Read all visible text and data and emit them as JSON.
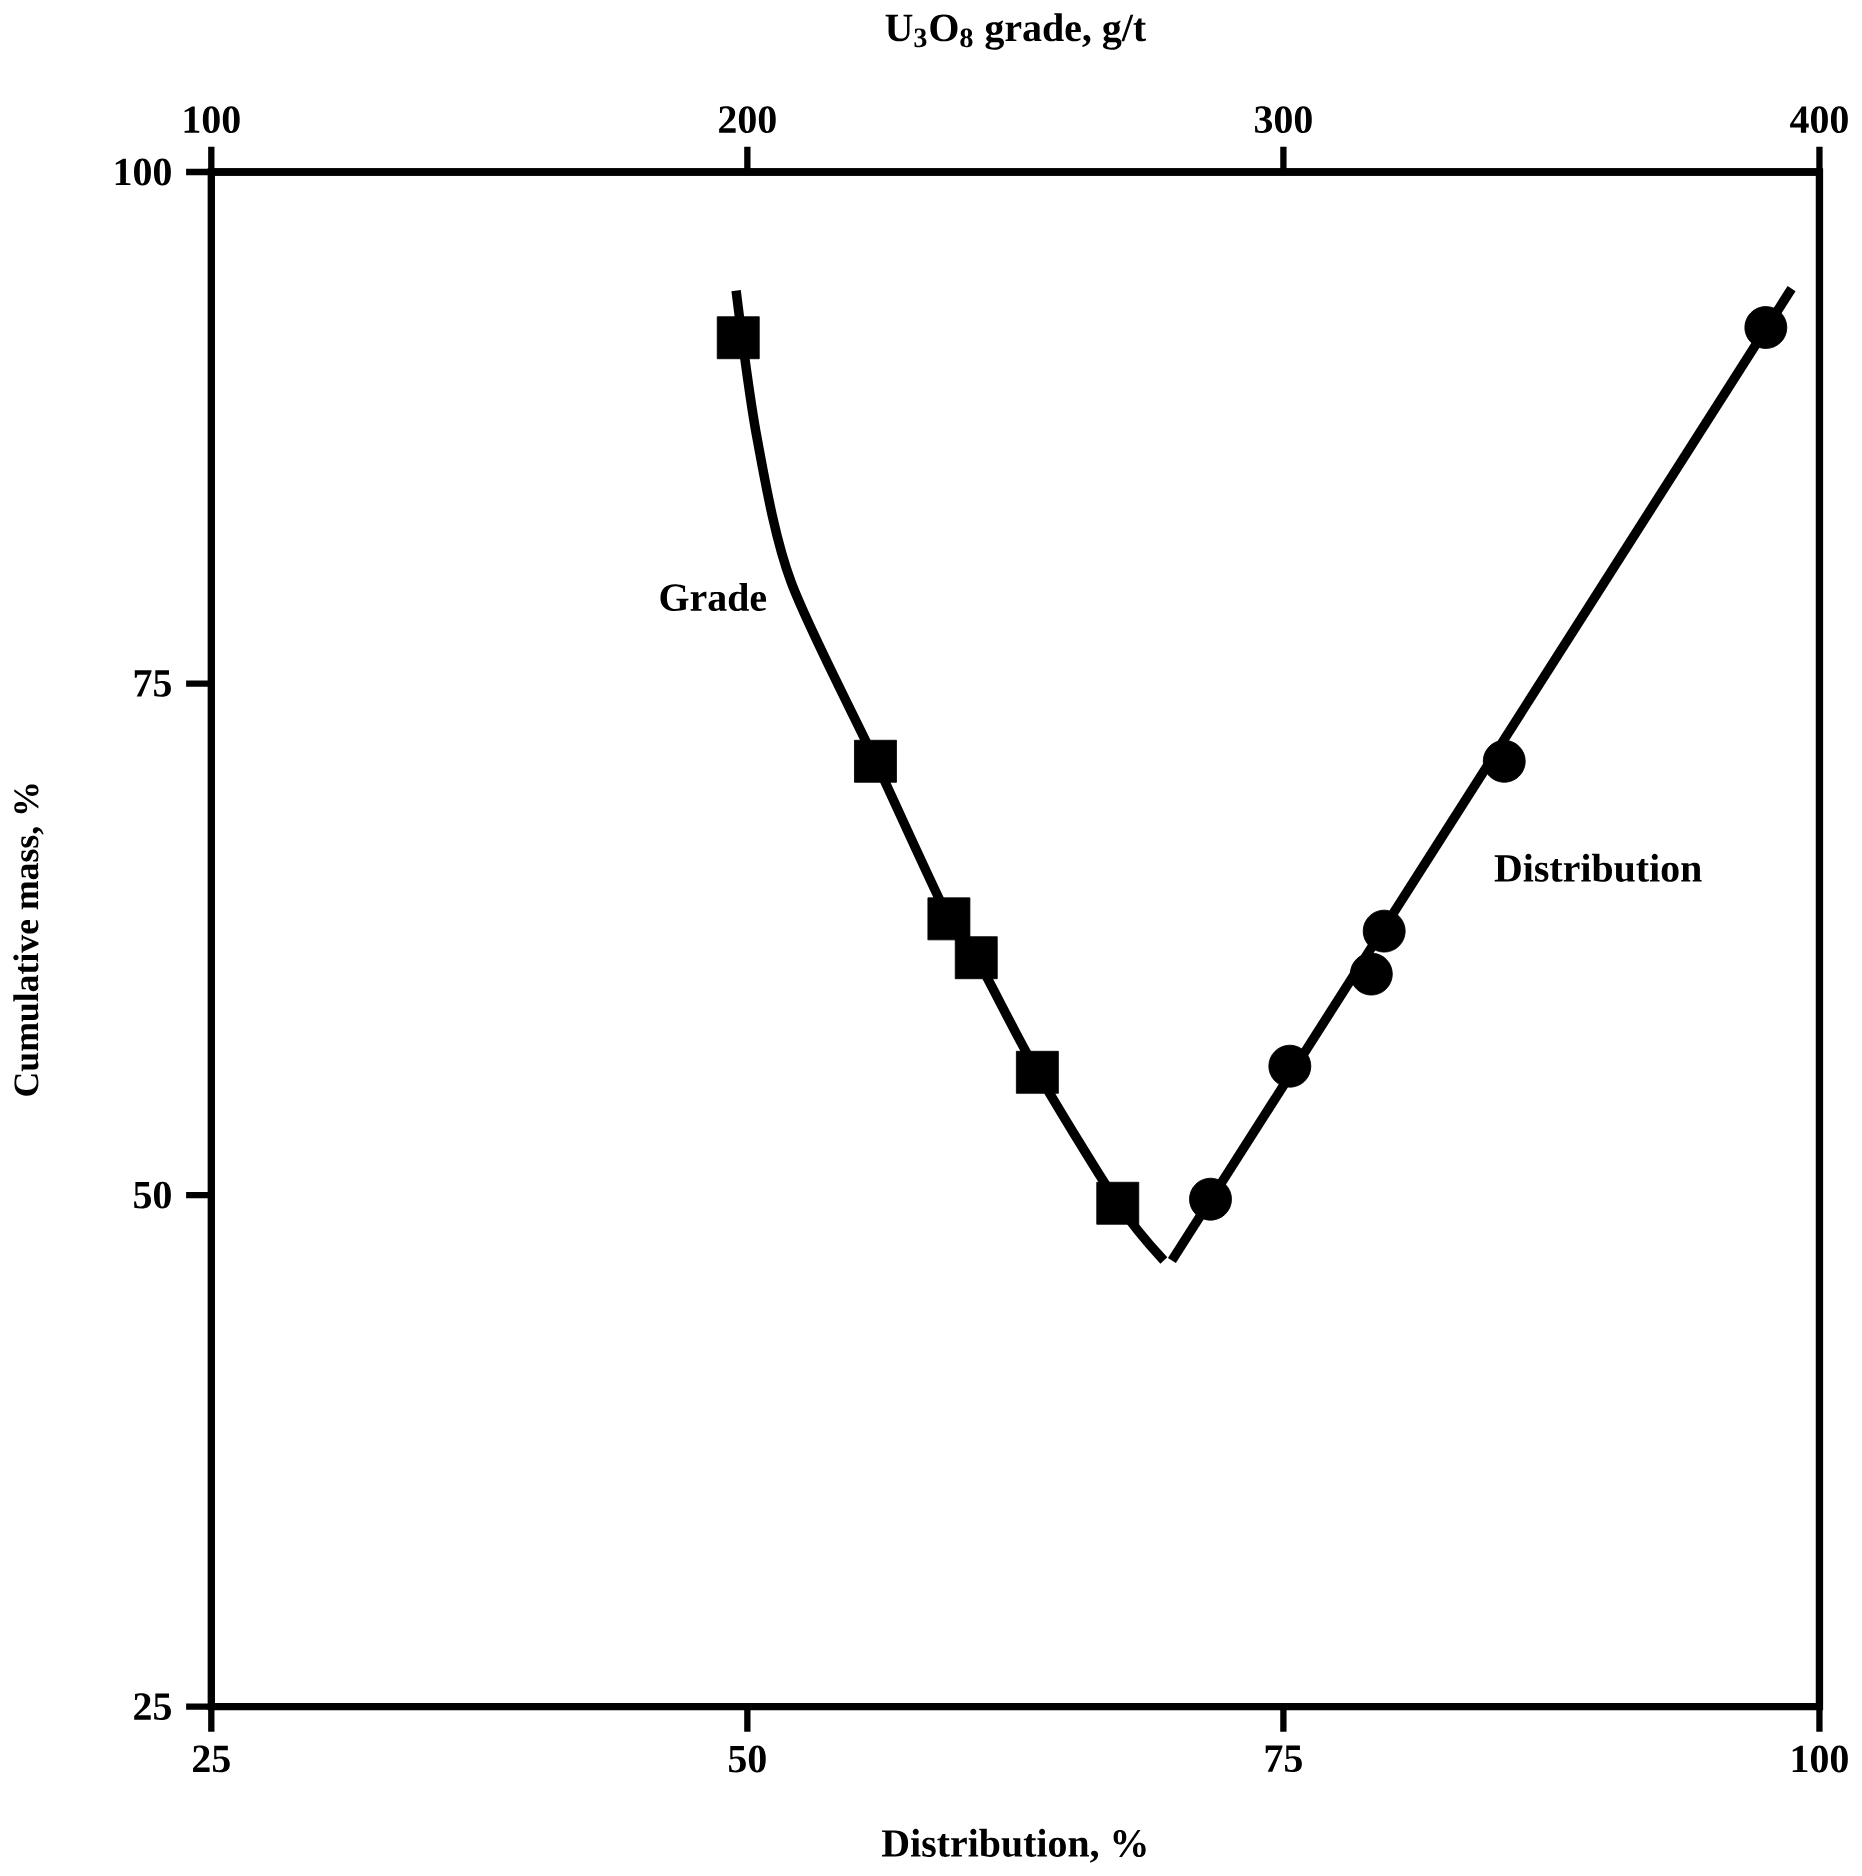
{
  "chart_data": {
    "type": "scatter",
    "xlabel": "Distribution, %",
    "ylabel": "Cumulative mass, %",
    "x2label": "U$_{3}$O$_{8}$ grade, g/t",
    "xlim": [
      25,
      100
    ],
    "ylim": [
      25,
      100
    ],
    "x2lim": [
      100,
      400
    ],
    "xticks": [
      25,
      50,
      75,
      100
    ],
    "yticks": [
      25,
      50,
      75,
      100
    ],
    "x2ticks": [
      100,
      200,
      300,
      400
    ],
    "grid": false,
    "series": [
      {
        "name": "Grade",
        "type": "line",
        "axis": "x2",
        "color": "#000000",
        "marker": "none",
        "x": [
          197.9,
          201.8,
          208.1,
          223.9,
          237.6,
          242.7,
          254.1,
          269.1,
          277.7
        ],
        "values": [
          94.2,
          87.0,
          80.0,
          71.2,
          63.5,
          61.6,
          56.0,
          49.6,
          46.8
        ]
      },
      {
        "axis": "x2",
        "color": "#000000",
        "marker": "square",
        "x": [
          198.3,
          223.9,
          237.6,
          242.7,
          254.1,
          269.1
        ],
        "values": [
          91.9,
          71.2,
          63.5,
          61.6,
          56.0,
          49.6
        ]
      },
      {
        "name": "Distribution",
        "type": "line",
        "color": "#000000",
        "marker": "none",
        "x": [
          69.8,
          98.7
        ],
        "values": [
          46.8,
          94.3
        ]
      },
      {
        "color": "#000000",
        "marker": "circle",
        "x": [
          71.6,
          75.3,
          79.1,
          79.7,
          85.3,
          97.5
        ],
        "values": [
          49.8,
          56.3,
          60.8,
          62.9,
          71.2,
          92.4
        ]
      }
    ]
  }
}
